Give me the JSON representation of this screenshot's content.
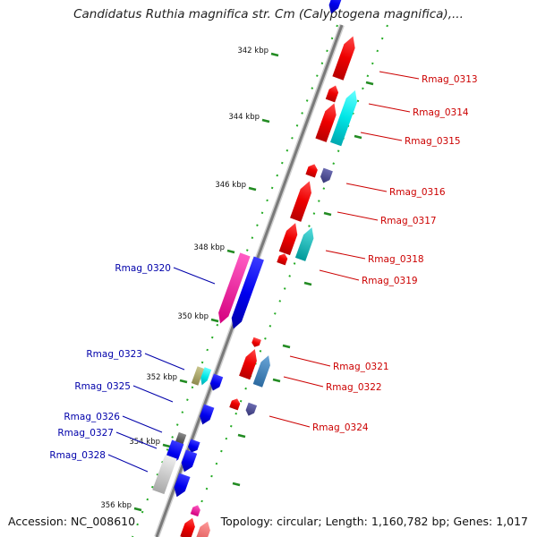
{
  "title": "Candidatus Ruthia magnifica str. Cm (Calyptogena magnifica),...",
  "footer": {
    "accession": "Accession: NC_008610",
    "topology": "Topology: circular; Length: 1,160,782 bp; Genes: 1,017"
  },
  "scale_labels": [
    "342 kbp",
    "344 kbp",
    "346 kbp",
    "348 kbp",
    "350 kbp",
    "352 kbp",
    "354 kbp",
    "356 kbp"
  ],
  "colors": {
    "forward_gene": "#ff0000",
    "reverse_gene": "#0000ee",
    "forward_label": "#cc0000",
    "reverse_label": "#0000aa",
    "tick": "#228b22",
    "backbone": "#8c8c8c"
  },
  "genes_right": [
    {
      "label": "Rmag_0313"
    },
    {
      "label": "Rmag_0314"
    },
    {
      "label": "Rmag_0315"
    },
    {
      "label": "Rmag_0316"
    },
    {
      "label": "Rmag_0317"
    },
    {
      "label": "Rmag_0318"
    },
    {
      "label": "Rmag_0319"
    },
    {
      "label": "Rmag_0321"
    },
    {
      "label": "Rmag_0322"
    },
    {
      "label": "Rmag_0324"
    }
  ],
  "genes_left": [
    {
      "label": "Rmag_0320"
    },
    {
      "label": "Rmag_0323"
    },
    {
      "label": "Rmag_0325"
    },
    {
      "label": "Rmag_0326"
    },
    {
      "label": "Rmag_0327"
    },
    {
      "label": "Rmag_0328"
    }
  ]
}
